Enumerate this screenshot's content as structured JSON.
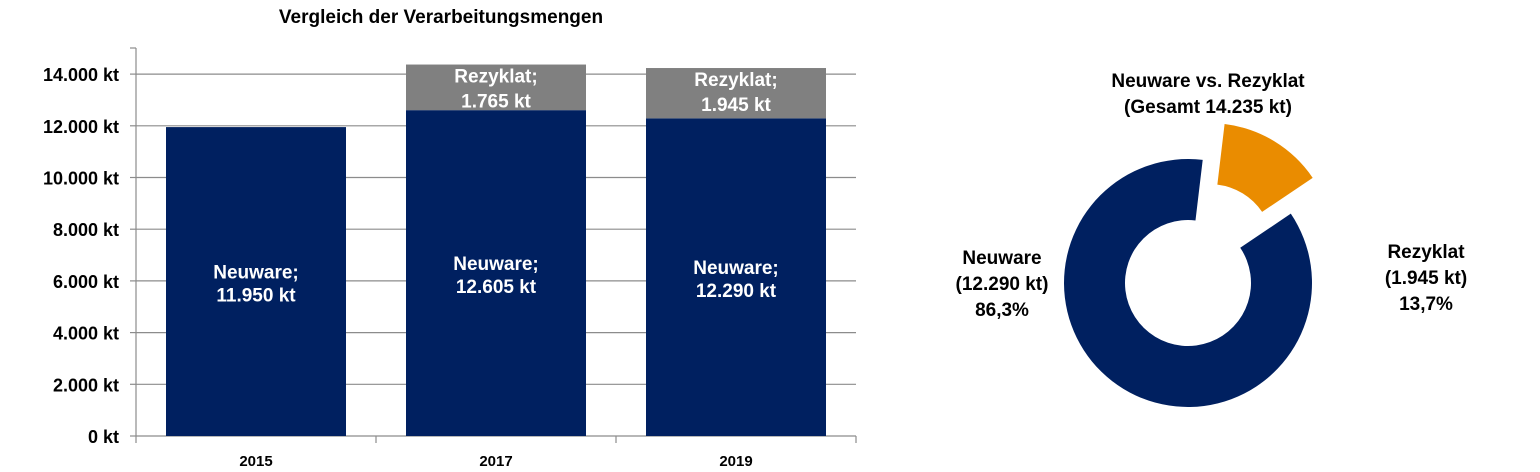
{
  "chart_data": [
    {
      "type": "bar",
      "stacked": true,
      "title": "Vergleich der Verarbeitungsmengen",
      "categories": [
        "2015",
        "2017",
        "2019"
      ],
      "series": [
        {
          "name": "Neuware",
          "values": [
            11950,
            12605,
            12290
          ],
          "labels": [
            [
              "Neuware;",
              "11.950 kt"
            ],
            [
              "Neuware;",
              "12.605 kt"
            ],
            [
              "Neuware;",
              "12.290 kt"
            ]
          ],
          "color": "#002060"
        },
        {
          "name": "Rezyklat",
          "values": [
            0,
            1765,
            1945
          ],
          "labels": [
            [],
            [
              "Rezyklat;",
              "1.765 kt"
            ],
            [
              "Rezyklat;",
              "1.945 kt"
            ]
          ],
          "color": "#808080"
        }
      ],
      "yticks": [
        "0 kt",
        "2.000 kt",
        "4.000 kt",
        "6.000 kt",
        "8.000 kt",
        "10.000 kt",
        "12.000 kt",
        "14.000 kt"
      ],
      "ylim": [
        0,
        15000
      ],
      "grid": true
    },
    {
      "type": "pie",
      "donut": true,
      "title": [
        "Neuware vs. Rezyklat",
        "(Gesamt 14.235 kt)"
      ],
      "slices": [
        {
          "name": "Neuware",
          "value": 12290,
          "labels": [
            "Neuware",
            "(12.290 kt)",
            "86,3%"
          ],
          "color": "#002060"
        },
        {
          "name": "Rezyklat",
          "value": 1945,
          "labels": [
            "Rezyklat",
            "(1.945 kt)",
            "13,7%"
          ],
          "color": "#EA8C00"
        }
      ]
    }
  ]
}
